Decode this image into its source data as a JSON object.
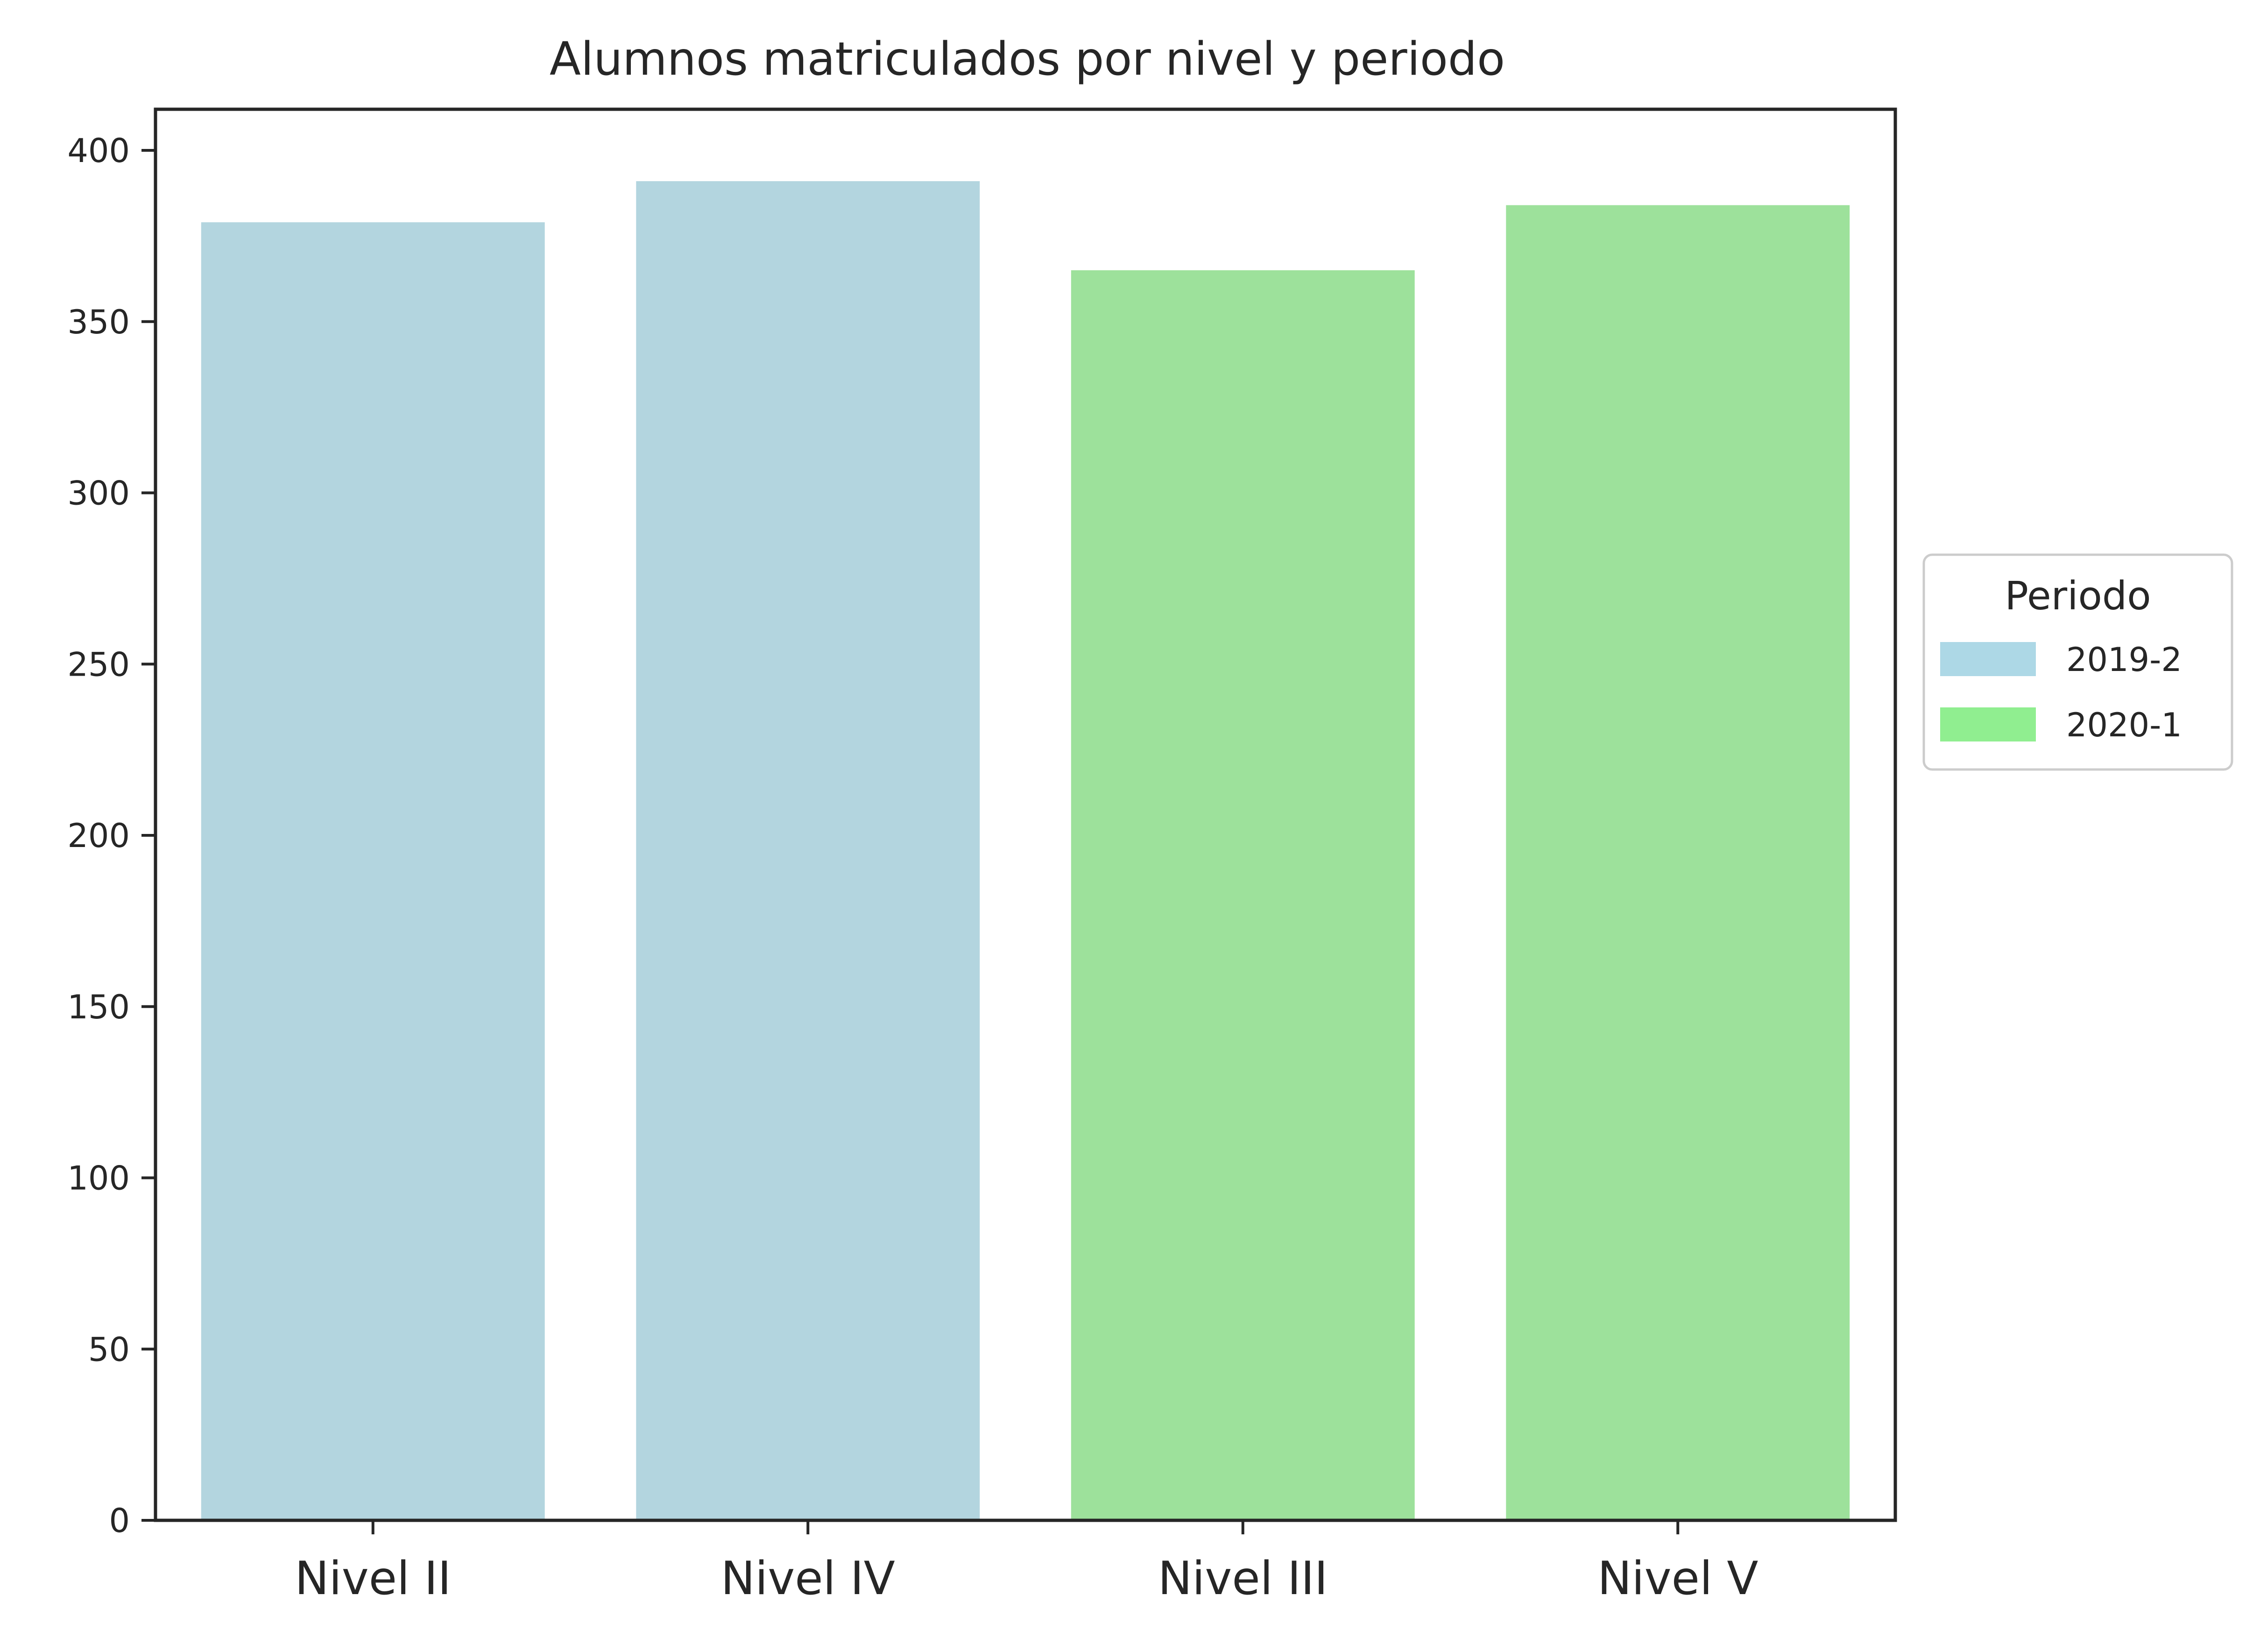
{
  "chart_data": {
    "type": "bar",
    "title": "Alumnos matriculados por nivel y periodo",
    "xlabel": "",
    "ylabel": "",
    "categories": [
      "Nivel II",
      "Nivel IV",
      "Nivel III",
      "Nivel V"
    ],
    "values": [
      379,
      391,
      365,
      384
    ],
    "bar_series": [
      "2019-2",
      "2019-2",
      "2020-1",
      "2020-1"
    ],
    "series": [
      {
        "name": "2019-2",
        "color": "#add8e6",
        "bar_color": "#b3d5df"
      },
      {
        "name": "2020-1",
        "color": "#90ee90",
        "bar_color": "#9de19b"
      }
    ],
    "ylim": [
      0,
      412
    ],
    "yticks": [
      0,
      50,
      100,
      150,
      200,
      250,
      300,
      350,
      400
    ],
    "legend": {
      "title": "Periodo",
      "placement": "center-right, outside plot"
    },
    "grid": false
  }
}
